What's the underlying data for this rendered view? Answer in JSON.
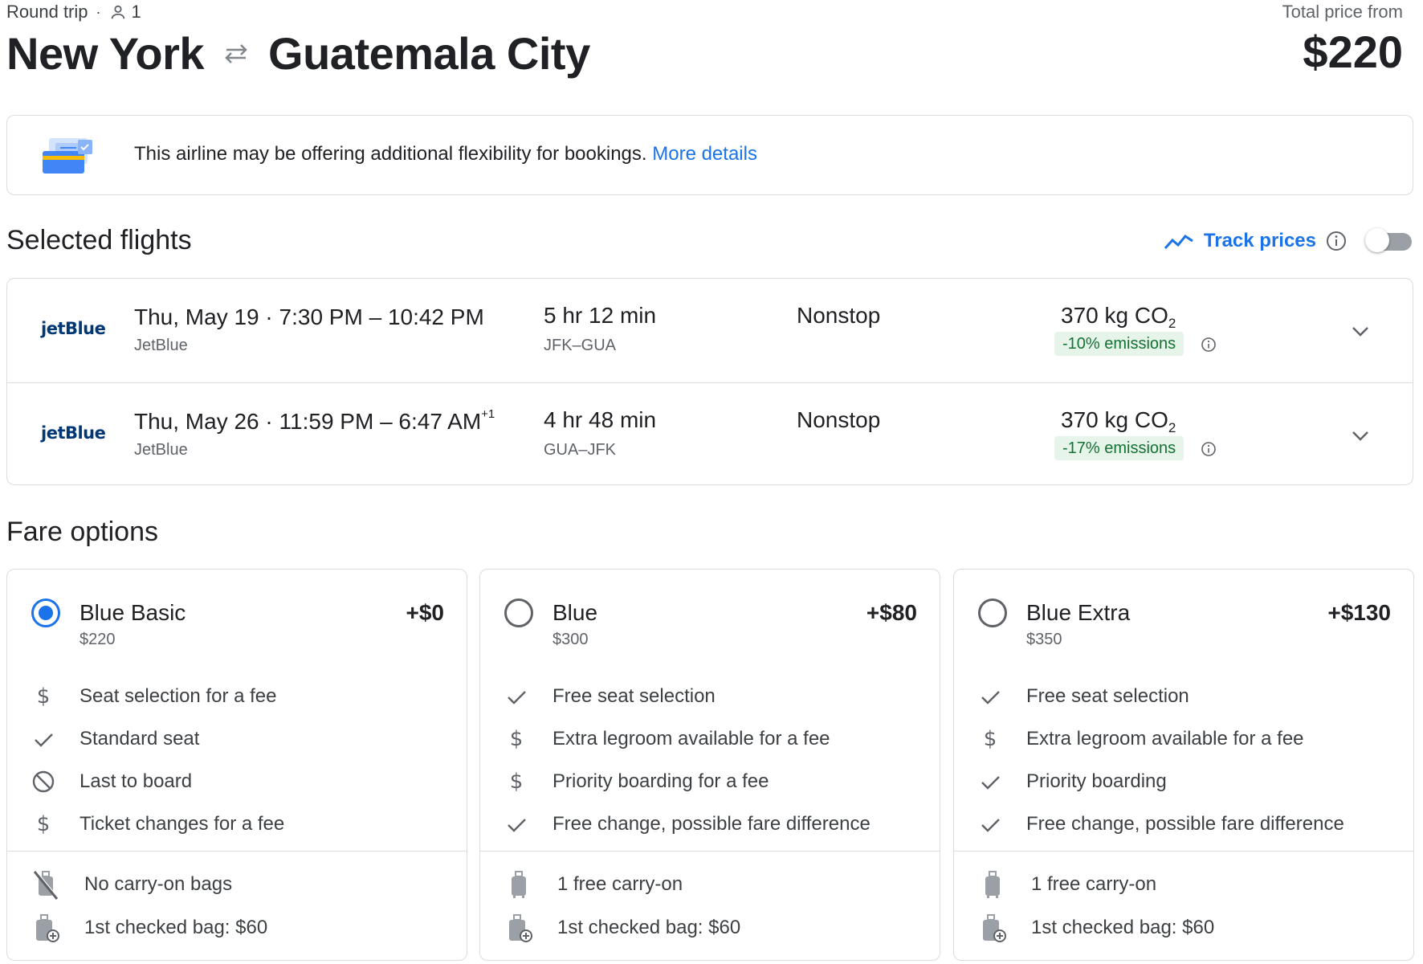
{
  "header": {
    "trip_type": "Round trip",
    "separator": "·",
    "passengers": "1",
    "origin": "New York",
    "destination": "Guatemala City",
    "total_label": "Total price from",
    "total_price": "$220"
  },
  "banner": {
    "text": "This airline may be offering additional flexibility for bookings.",
    "link": "More details"
  },
  "selected_flights": {
    "heading": "Selected flights",
    "track_label": "Track prices",
    "flights": [
      {
        "logo": "jetBlue",
        "date": "Thu, May 19",
        "sep": "·",
        "times": "7:30 PM – 10:42 PM",
        "day_offset": "",
        "airline": "JetBlue",
        "duration": "5 hr 12 min",
        "airports": "JFK–GUA",
        "stops": "Nonstop",
        "co2": "370 kg CO",
        "co2_sub": "2",
        "emissions": "-10% emissions"
      },
      {
        "logo": "jetBlue",
        "date": "Thu, May 26",
        "sep": "·",
        "times": "11:59 PM – 6:47 AM",
        "day_offset": "+1",
        "airline": "JetBlue",
        "duration": "4 hr 48 min",
        "airports": "GUA–JFK",
        "stops": "Nonstop",
        "co2": "370 kg CO",
        "co2_sub": "2",
        "emissions": "-17% emissions"
      }
    ]
  },
  "fare_options": {
    "heading": "Fare options",
    "fares": [
      {
        "name": "Blue Basic",
        "price": "$220",
        "delta": "+$0",
        "selected": true,
        "features": [
          {
            "icon": "dollar-icon",
            "text": "Seat selection for a fee"
          },
          {
            "icon": "check-icon",
            "text": "Standard seat"
          },
          {
            "icon": "block-icon",
            "text": "Last to board"
          },
          {
            "icon": "dollar-icon",
            "text": "Ticket changes for a fee"
          }
        ],
        "bags": [
          {
            "icon": "no-carry-on-icon",
            "text": "No carry-on bags"
          },
          {
            "icon": "checked-bag-icon",
            "text": "1st checked bag: $60"
          }
        ]
      },
      {
        "name": "Blue",
        "price": "$300",
        "delta": "+$80",
        "selected": false,
        "features": [
          {
            "icon": "check-icon",
            "text": "Free seat selection"
          },
          {
            "icon": "dollar-icon",
            "text": "Extra legroom available for a fee"
          },
          {
            "icon": "dollar-icon",
            "text": "Priority boarding for a fee"
          },
          {
            "icon": "check-icon",
            "text": "Free change, possible fare difference"
          }
        ],
        "bags": [
          {
            "icon": "carry-on-icon",
            "text": "1 free carry-on"
          },
          {
            "icon": "checked-bag-icon",
            "text": "1st checked bag: $60"
          }
        ]
      },
      {
        "name": "Blue Extra",
        "price": "$350",
        "delta": "+$130",
        "selected": false,
        "features": [
          {
            "icon": "check-icon",
            "text": "Free seat selection"
          },
          {
            "icon": "dollar-icon",
            "text": "Extra legroom available for a fee"
          },
          {
            "icon": "check-icon",
            "text": "Priority boarding"
          },
          {
            "icon": "check-icon",
            "text": "Free change, possible fare difference"
          }
        ],
        "bags": [
          {
            "icon": "carry-on-icon",
            "text": "1 free carry-on"
          },
          {
            "icon": "checked-bag-icon",
            "text": "1st checked bag: $60"
          }
        ]
      }
    ]
  },
  "colors": {
    "accent": "#1a73e8",
    "emissions_bg": "#e6f4ea",
    "emissions_text": "#137333",
    "border": "#dadce0"
  }
}
